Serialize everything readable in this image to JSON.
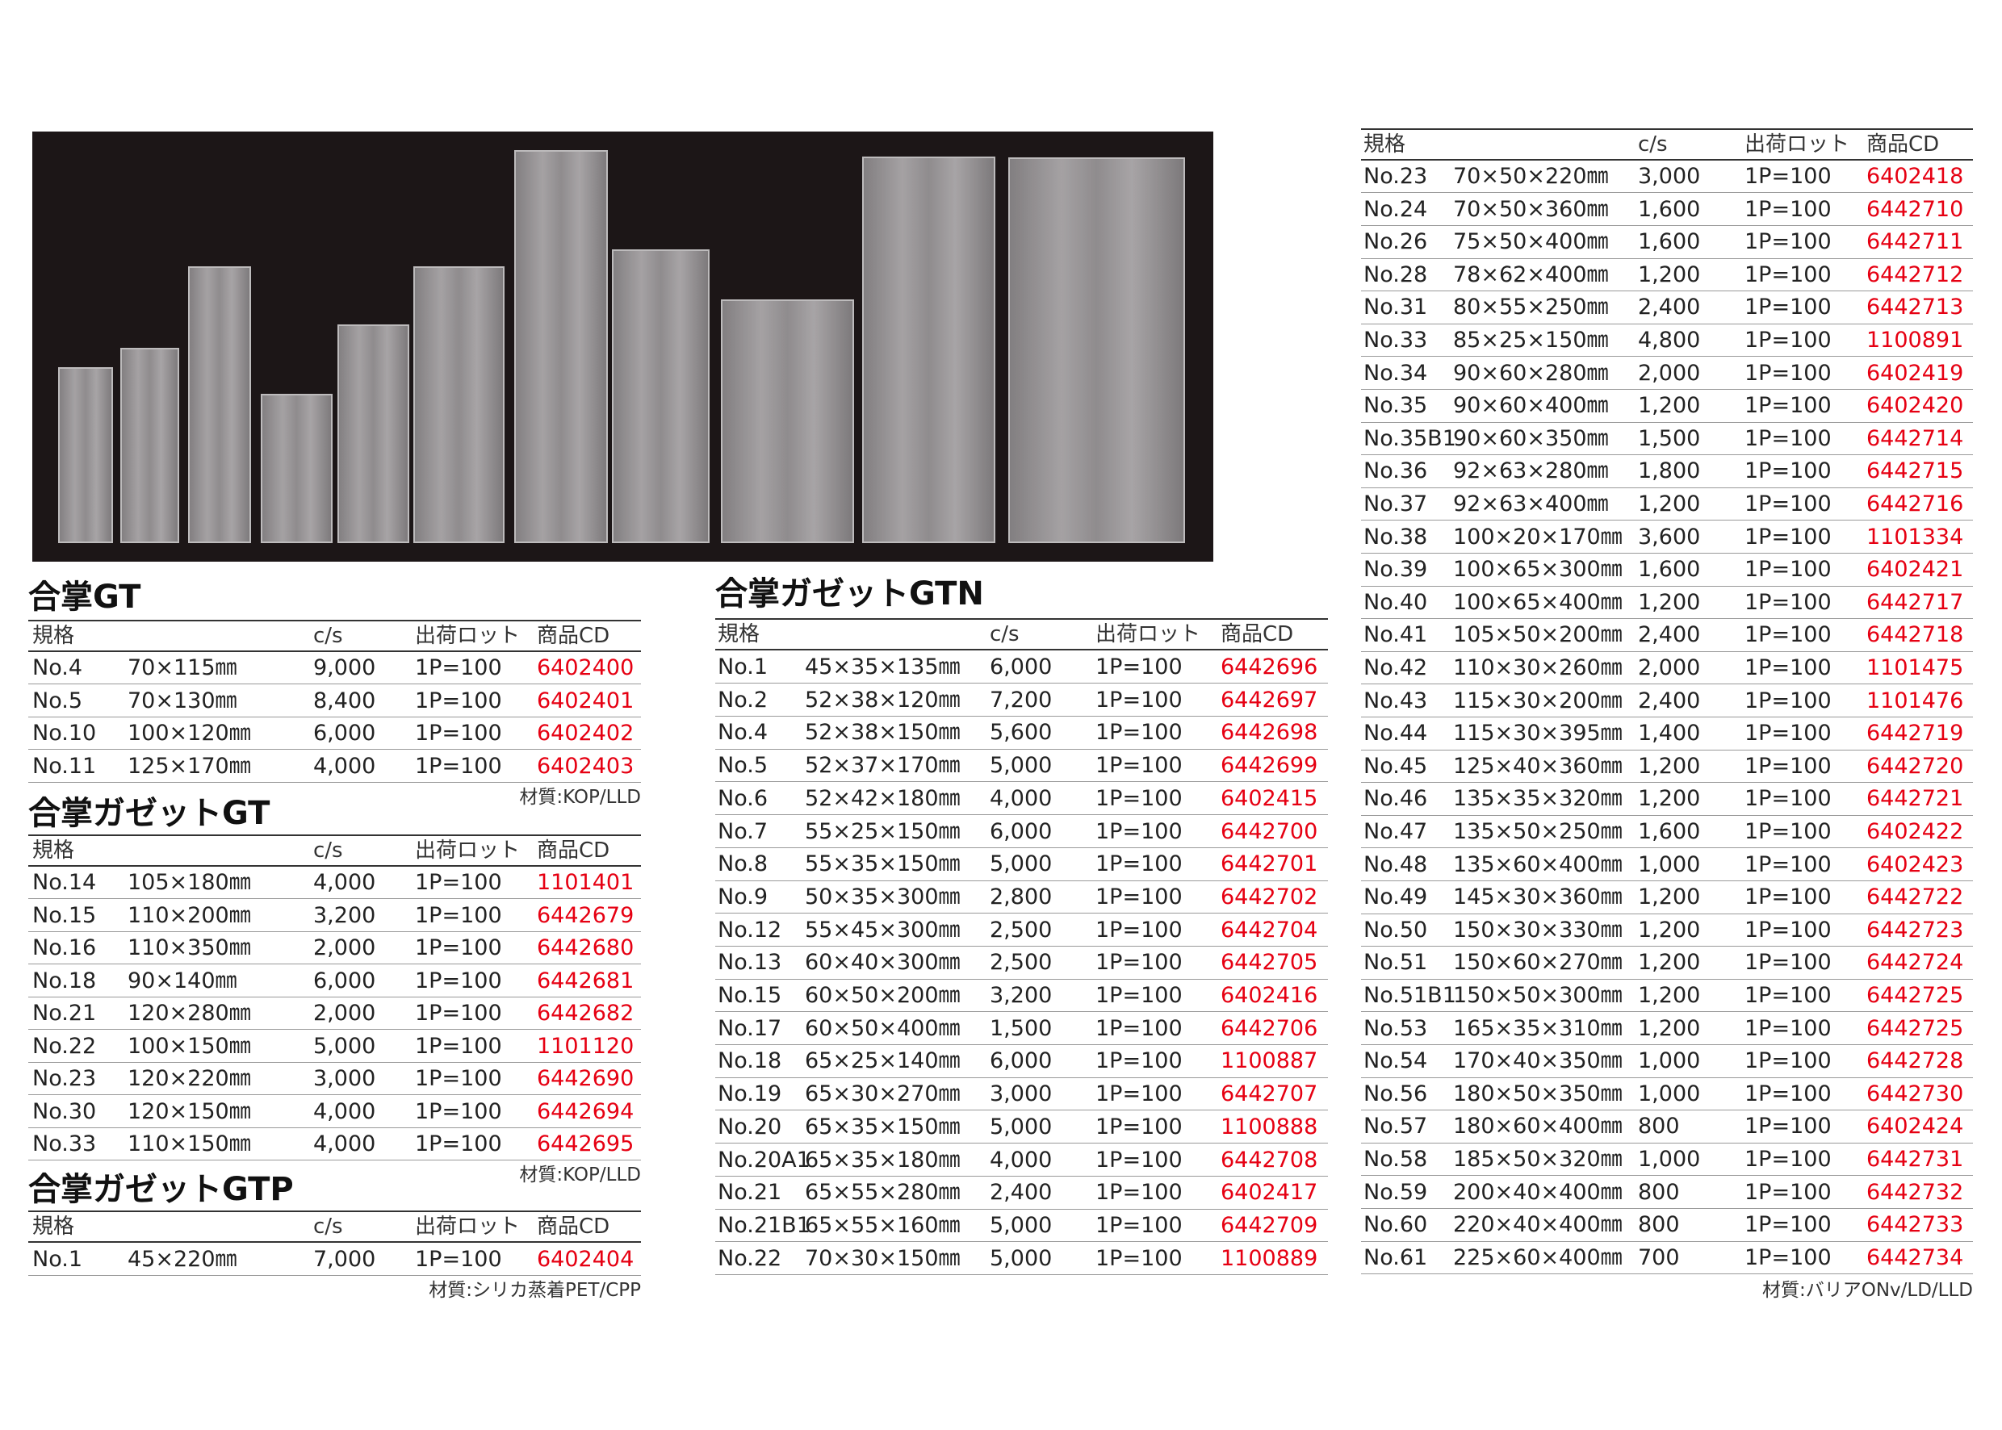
{
  "sections": [
    {
      "title": "合掌GT",
      "header": [
        "規格",
        "c/s",
        "出荷ロット",
        "商品CD"
      ],
      "rows": [
        [
          "No.4",
          "70×115㎜",
          "9,000",
          "1P=100",
          "6402400"
        ],
        [
          "No.5",
          "70×130㎜",
          "8,400",
          "1P=100",
          "6402401"
        ],
        [
          "No.10",
          "100×120㎜",
          "6,000",
          "1P=100",
          "6402402"
        ],
        [
          "No.11",
          "125×170㎜",
          "4,000",
          "1P=100",
          "6402403"
        ]
      ],
      "note": "材質:KOP/LLD"
    },
    {
      "title": "合掌ガゼットGT",
      "header": [
        "規格",
        "c/s",
        "出荷ロット",
        "商品CD"
      ],
      "rows": [
        [
          "No.14",
          "105×180㎜",
          "4,000",
          "1P=100",
          "1101401"
        ],
        [
          "No.15",
          "110×200㎜",
          "3,200",
          "1P=100",
          "6442679"
        ],
        [
          "No.16",
          "110×350㎜",
          "2,000",
          "1P=100",
          "6442680"
        ],
        [
          "No.18",
          "90×140㎜",
          "6,000",
          "1P=100",
          "6442681"
        ],
        [
          "No.21",
          "120×280㎜",
          "2,000",
          "1P=100",
          "6442682"
        ],
        [
          "No.22",
          "100×150㎜",
          "5,000",
          "1P=100",
          "1101120"
        ],
        [
          "No.23",
          "120×220㎜",
          "3,000",
          "1P=100",
          "6442690"
        ],
        [
          "No.30",
          "120×150㎜",
          "4,000",
          "1P=100",
          "6442694"
        ],
        [
          "No.33",
          "110×150㎜",
          "4,000",
          "1P=100",
          "6442695"
        ]
      ],
      "note": "材質:KOP/LLD"
    },
    {
      "title": "合掌ガゼットGTP",
      "header": [
        "規格",
        "c/s",
        "出荷ロット",
        "商品CD"
      ],
      "rows": [
        [
          "No.1",
          "45×220㎜",
          "7,000",
          "1P=100",
          "6402404"
        ]
      ],
      "note": "材質:シリカ蒸着PET/CPP"
    },
    {
      "title": "合掌ガゼットGTN",
      "header": [
        "規格",
        "c/s",
        "出荷ロット",
        "商品CD"
      ],
      "rows": [
        [
          "No.1",
          "45×35×135㎜",
          "6,000",
          "1P=100",
          "6442696"
        ],
        [
          "No.2",
          "52×38×120㎜",
          "7,200",
          "1P=100",
          "6442697"
        ],
        [
          "No.4",
          "52×38×150㎜",
          "5,600",
          "1P=100",
          "6442698"
        ],
        [
          "No.5",
          "52×37×170㎜",
          "5,000",
          "1P=100",
          "6442699"
        ],
        [
          "No.6",
          "52×42×180㎜",
          "4,000",
          "1P=100",
          "6402415"
        ],
        [
          "No.7",
          "55×25×150㎜",
          "6,000",
          "1P=100",
          "6442700"
        ],
        [
          "No.8",
          "55×35×150㎜",
          "5,000",
          "1P=100",
          "6442701"
        ],
        [
          "No.9",
          "50×35×300㎜",
          "2,800",
          "1P=100",
          "6442702"
        ],
        [
          "No.12",
          "55×45×300㎜",
          "2,500",
          "1P=100",
          "6442704"
        ],
        [
          "No.13",
          "60×40×300㎜",
          "2,500",
          "1P=100",
          "6442705"
        ],
        [
          "No.15",
          "60×50×200㎜",
          "3,200",
          "1P=100",
          "6402416"
        ],
        [
          "No.17",
          "60×50×400㎜",
          "1,500",
          "1P=100",
          "6442706"
        ],
        [
          "No.18",
          "65×25×140㎜",
          "6,000",
          "1P=100",
          "1100887"
        ],
        [
          "No.19",
          "65×30×270㎜",
          "3,000",
          "1P=100",
          "6442707"
        ],
        [
          "No.20",
          "65×35×150㎜",
          "5,000",
          "1P=100",
          "1100888"
        ],
        [
          "No.20A1",
          "65×35×180㎜",
          "4,000",
          "1P=100",
          "6442708"
        ],
        [
          "No.21",
          "65×55×280㎜",
          "2,400",
          "1P=100",
          "6402417"
        ],
        [
          "No.21B1",
          "65×55×160㎜",
          "5,000",
          "1P=100",
          "6442709"
        ],
        [
          "No.22",
          "70×30×150㎜",
          "5,000",
          "1P=100",
          "1100889"
        ]
      ]
    },
    {
      "header": [
        "規格",
        "c/s",
        "出荷ロット",
        "商品CD"
      ],
      "rows": [
        [
          "No.23",
          "70×50×220㎜",
          "3,000",
          "1P=100",
          "6402418"
        ],
        [
          "No.24",
          "70×50×360㎜",
          "1,600",
          "1P=100",
          "6442710"
        ],
        [
          "No.26",
          "75×50×400㎜",
          "1,600",
          "1P=100",
          "6442711"
        ],
        [
          "No.28",
          "78×62×400㎜",
          "1,200",
          "1P=100",
          "6442712"
        ],
        [
          "No.31",
          "80×55×250㎜",
          "2,400",
          "1P=100",
          "6442713"
        ],
        [
          "No.33",
          "85×25×150㎜",
          "4,800",
          "1P=100",
          "1100891"
        ],
        [
          "No.34",
          "90×60×280㎜",
          "2,000",
          "1P=100",
          "6402419"
        ],
        [
          "No.35",
          "90×60×400㎜",
          "1,200",
          "1P=100",
          "6402420"
        ],
        [
          "No.35B1",
          "90×60×350㎜",
          "1,500",
          "1P=100",
          "6442714"
        ],
        [
          "No.36",
          "92×63×280㎜",
          "1,800",
          "1P=100",
          "6442715"
        ],
        [
          "No.37",
          "92×63×400㎜",
          "1,200",
          "1P=100",
          "6442716"
        ],
        [
          "No.38",
          "100×20×170㎜",
          "3,600",
          "1P=100",
          "1101334"
        ],
        [
          "No.39",
          "100×65×300㎜",
          "1,600",
          "1P=100",
          "6402421"
        ],
        [
          "No.40",
          "100×65×400㎜",
          "1,200",
          "1P=100",
          "6442717"
        ],
        [
          "No.41",
          "105×50×200㎜",
          "2,400",
          "1P=100",
          "6442718"
        ],
        [
          "No.42",
          "110×30×260㎜",
          "2,000",
          "1P=100",
          "1101475"
        ],
        [
          "No.43",
          "115×30×200㎜",
          "2,400",
          "1P=100",
          "1101476"
        ],
        [
          "No.44",
          "115×30×395㎜",
          "1,400",
          "1P=100",
          "6442719"
        ],
        [
          "No.45",
          "125×40×360㎜",
          "1,200",
          "1P=100",
          "6442720"
        ],
        [
          "No.46",
          "135×35×320㎜",
          "1,200",
          "1P=100",
          "6442721"
        ],
        [
          "No.47",
          "135×50×250㎜",
          "1,600",
          "1P=100",
          "6402422"
        ],
        [
          "No.48",
          "135×60×400㎜",
          "1,000",
          "1P=100",
          "6402423"
        ],
        [
          "No.49",
          "145×30×360㎜",
          "1,200",
          "1P=100",
          "6442722"
        ],
        [
          "No.50",
          "150×30×330㎜",
          "1,200",
          "1P=100",
          "6442723"
        ],
        [
          "No.51",
          "150×60×270㎜",
          "1,200",
          "1P=100",
          "6442724"
        ],
        [
          "No.51B1",
          "150×50×300㎜",
          "1,200",
          "1P=100",
          "6442725"
        ],
        [
          "No.53",
          "165×35×310㎜",
          "1,200",
          "1P=100",
          "6442725"
        ],
        [
          "No.54",
          "170×40×350㎜",
          "1,000",
          "1P=100",
          "6442728"
        ],
        [
          "No.56",
          "180×50×350㎜",
          "1,000",
          "1P=100",
          "6442730"
        ],
        [
          "No.57",
          "180×60×400㎜",
          "800",
          "1P=100",
          "6402424"
        ],
        [
          "No.58",
          "185×50×320㎜",
          "1,000",
          "1P=100",
          "6442731"
        ],
        [
          "No.59",
          "200×40×400㎜",
          "800",
          "1P=100",
          "6442732"
        ],
        [
          "No.60",
          "220×40×400㎜",
          "800",
          "1P=100",
          "6442733"
        ],
        [
          "No.61",
          "225×60×400㎜",
          "700",
          "1P=100",
          "6442734"
        ]
      ],
      "note": "材質:バリアONv/LD/LLD"
    }
  ]
}
